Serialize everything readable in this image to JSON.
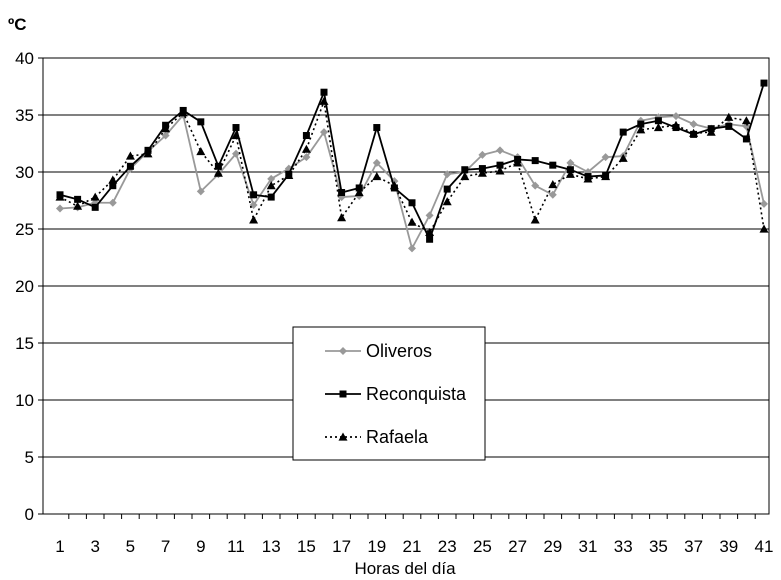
{
  "chart_data": {
    "type": "line",
    "ylabel": "ºC",
    "xlabel": "Horas del día",
    "ylim": [
      0,
      40
    ],
    "yticks": [
      0,
      5,
      10,
      15,
      20,
      25,
      30,
      35,
      40
    ],
    "xlim": [
      1,
      41
    ],
    "xticks": [
      1,
      3,
      5,
      7,
      9,
      11,
      13,
      15,
      17,
      19,
      21,
      23,
      25,
      27,
      29,
      31,
      33,
      35,
      37,
      39,
      41
    ],
    "grid": "horizontal",
    "legend_position": "center",
    "x": [
      1,
      2,
      3,
      4,
      5,
      6,
      7,
      8,
      9,
      10,
      11,
      12,
      13,
      14,
      15,
      16,
      17,
      18,
      19,
      20,
      21,
      22,
      23,
      24,
      25,
      26,
      27,
      28,
      29,
      30,
      31,
      32,
      33,
      34,
      35,
      36,
      37,
      38,
      39,
      40,
      41
    ],
    "series": [
      {
        "name": "Oliveros",
        "color": "#999999",
        "marker": "diamond",
        "dash": "solid",
        "values": [
          26.8,
          26.9,
          27.3,
          27.3,
          30.3,
          31.8,
          33.2,
          35.0,
          28.3,
          29.8,
          31.6,
          27.1,
          29.4,
          30.3,
          31.3,
          33.5,
          27.8,
          27.9,
          30.8,
          29.2,
          23.3,
          26.2,
          29.8,
          30.0,
          31.5,
          31.9,
          31.3,
          28.8,
          28.0,
          30.8,
          30.0,
          31.3,
          31.4,
          34.5,
          34.8,
          34.9,
          34.2,
          33.8,
          34.2,
          34.0,
          27.2
        ]
      },
      {
        "name": "Reconquista",
        "color": "#000000",
        "marker": "square",
        "dash": "solid",
        "values": [
          28.0,
          27.6,
          26.9,
          28.8,
          30.5,
          31.9,
          34.1,
          35.4,
          34.4,
          30.5,
          33.9,
          28.0,
          27.8,
          29.8,
          33.2,
          37.0,
          28.2,
          28.6,
          33.9,
          28.6,
          27.3,
          24.1,
          28.5,
          30.2,
          30.3,
          30.6,
          31.1,
          31.0,
          30.6,
          30.2,
          29.6,
          29.7,
          33.5,
          34.2,
          34.5,
          33.9,
          33.3,
          33.8,
          34.0,
          32.9,
          37.8
        ]
      },
      {
        "name": "Rafaela",
        "color": "#000000",
        "marker": "triangle",
        "dash": "dotted",
        "values": [
          27.8,
          27.0,
          27.8,
          29.3,
          31.4,
          31.6,
          33.8,
          35.2,
          31.8,
          29.9,
          33.2,
          25.8,
          28.8,
          29.7,
          32.0,
          36.2,
          26.0,
          28.2,
          29.6,
          28.8,
          25.6,
          24.7,
          27.4,
          29.6,
          29.9,
          30.1,
          30.8,
          25.8,
          28.9,
          29.8,
          29.4,
          29.6,
          31.2,
          33.7,
          33.9,
          34.1,
          33.4,
          33.5,
          34.8,
          34.5,
          25.0
        ]
      }
    ]
  }
}
